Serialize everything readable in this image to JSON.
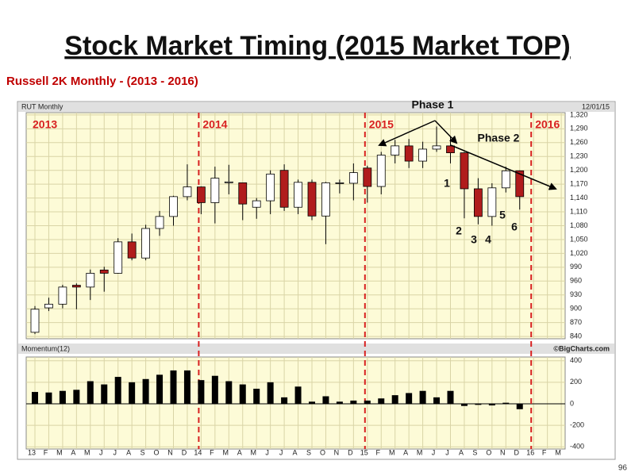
{
  "title": "Stock Market Timing (2015 Market TOP)",
  "subtitle": "Russell 2K Monthly - (2013 - 2016)",
  "page_number": "96",
  "chart_data": [
    {
      "type": "candlestick",
      "title": "RUT Monthly",
      "date_label": "12/01/15",
      "up_color": "#ffffff",
      "down_color": "#b01c1c",
      "open": [
        849,
        902,
        910,
        951,
        947,
        984,
        977,
        1045,
        1010,
        1074,
        1100,
        1143,
        1164,
        1130,
        1173,
        1173,
        1120,
        1134,
        1200,
        1120,
        1174,
        1101,
        1173,
        1172,
        1205,
        1165,
        1233,
        1253,
        1220,
        1246,
        1253,
        1238,
        1160,
        1100,
        1162,
        1199,
        null,
        null,
        null
      ],
      "high": [
        906,
        924,
        952,
        955,
        985,
        991,
        1053,
        1063,
        1082,
        1112,
        1145,
        1213,
        1165,
        1208,
        1212,
        1173,
        1140,
        1200,
        1213,
        1180,
        1180,
        1175,
        1180,
        1215,
        1210,
        1240,
        1266,
        1268,
        1262,
        1295,
        1273,
        1240,
        1183,
        1172,
        1208,
        1200,
        null,
        null,
        null
      ],
      "low": [
        845,
        895,
        901,
        899,
        919,
        937,
        976,
        1005,
        1005,
        1058,
        1080,
        1135,
        1105,
        1085,
        1148,
        1092,
        1095,
        1105,
        1112,
        1105,
        1092,
        1040,
        1150,
        1135,
        1130,
        1148,
        1215,
        1205,
        1205,
        1240,
        1215,
        1096,
        1083,
        1080,
        1152,
        1115,
        null,
        null,
        null
      ],
      "close": [
        899,
        910,
        947,
        947,
        977,
        977,
        1045,
        1010,
        1074,
        1100,
        1143,
        1164,
        1130,
        1183,
        1175,
        1127,
        1134,
        1192,
        1120,
        1174,
        1101,
        1173,
        1173,
        1195,
        1165,
        1233,
        1253,
        1220,
        1246,
        1253,
        1238,
        1160,
        1100,
        1162,
        1199,
        1143,
        null,
        null,
        null
      ],
      "ylim": [
        835,
        1325
      ],
      "yticks": [
        {
          "value": 1320,
          "label": "1,320"
        },
        {
          "value": 1290,
          "label": "1,290"
        },
        {
          "value": 1260,
          "label": "1,260"
        },
        {
          "value": 1230,
          "label": "1,230"
        },
        {
          "value": 1200,
          "label": "1,200"
        },
        {
          "value": 1170,
          "label": "1,170"
        },
        {
          "value": 1140,
          "label": "1,140"
        },
        {
          "value": 1110,
          "label": "1,110"
        },
        {
          "value": 1080,
          "label": "1,080"
        },
        {
          "value": 1050,
          "label": "1,050"
        },
        {
          "value": 1020,
          "label": "1,020"
        },
        990,
        960,
        930,
        900,
        870,
        840
      ],
      "grid": true,
      "period_labels": [
        "2013",
        "2014",
        "2015",
        "2016"
      ],
      "phase_labels": [
        "Phase 1",
        "Phase 2"
      ],
      "wave_labels": [
        "1",
        "2",
        "3",
        "4",
        "5",
        "6"
      ]
    },
    {
      "type": "bar",
      "title": "Momentum(12)",
      "source": "©BigCharts.com",
      "color": "#000000",
      "categories": [
        "13",
        "F",
        "M",
        "A",
        "M",
        "J",
        "J",
        "A",
        "S",
        "O",
        "N",
        "D",
        "14",
        "F",
        "M",
        "A",
        "M",
        "J",
        "J",
        "A",
        "S",
        "O",
        "N",
        "D",
        "15",
        "F",
        "M",
        "A",
        "M",
        "J",
        "J",
        "A",
        "S",
        "O",
        "N",
        "D",
        "16",
        "F",
        "M"
      ],
      "values": [
        110,
        105,
        120,
        130,
        210,
        180,
        250,
        200,
        230,
        270,
        310,
        310,
        220,
        260,
        210,
        180,
        140,
        200,
        60,
        160,
        20,
        70,
        20,
        30,
        30,
        50,
        80,
        100,
        120,
        60,
        120,
        -20,
        -10,
        -15,
        10,
        -50,
        null,
        null,
        null
      ],
      "ylim": [
        -420,
        420
      ],
      "yticks": [
        400,
        200,
        0,
        -200,
        -400
      ],
      "grid": true
    }
  ]
}
